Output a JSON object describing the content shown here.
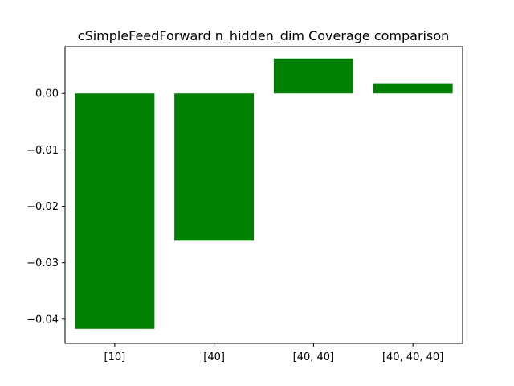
{
  "chart_data": {
    "type": "bar",
    "title": "cSimpleFeedForward n_hidden_dim Coverage comparison",
    "xlabel": "",
    "ylabel": "",
    "categories": [
      "[10]",
      "[40]",
      "[40, 40]",
      "[40, 40, 40]"
    ],
    "values": [
      -0.0417,
      -0.0261,
      0.0062,
      0.0018
    ],
    "ylim": [
      -0.0443,
      0.0083
    ],
    "yticks": [
      0.0,
      -0.01,
      -0.02,
      -0.03,
      -0.04
    ],
    "ytick_labels": [
      "0.00",
      "−0.01",
      "−0.02",
      "−0.03",
      "−0.04"
    ],
    "bar_color": "#008000",
    "grid": false,
    "legend": "none"
  }
}
